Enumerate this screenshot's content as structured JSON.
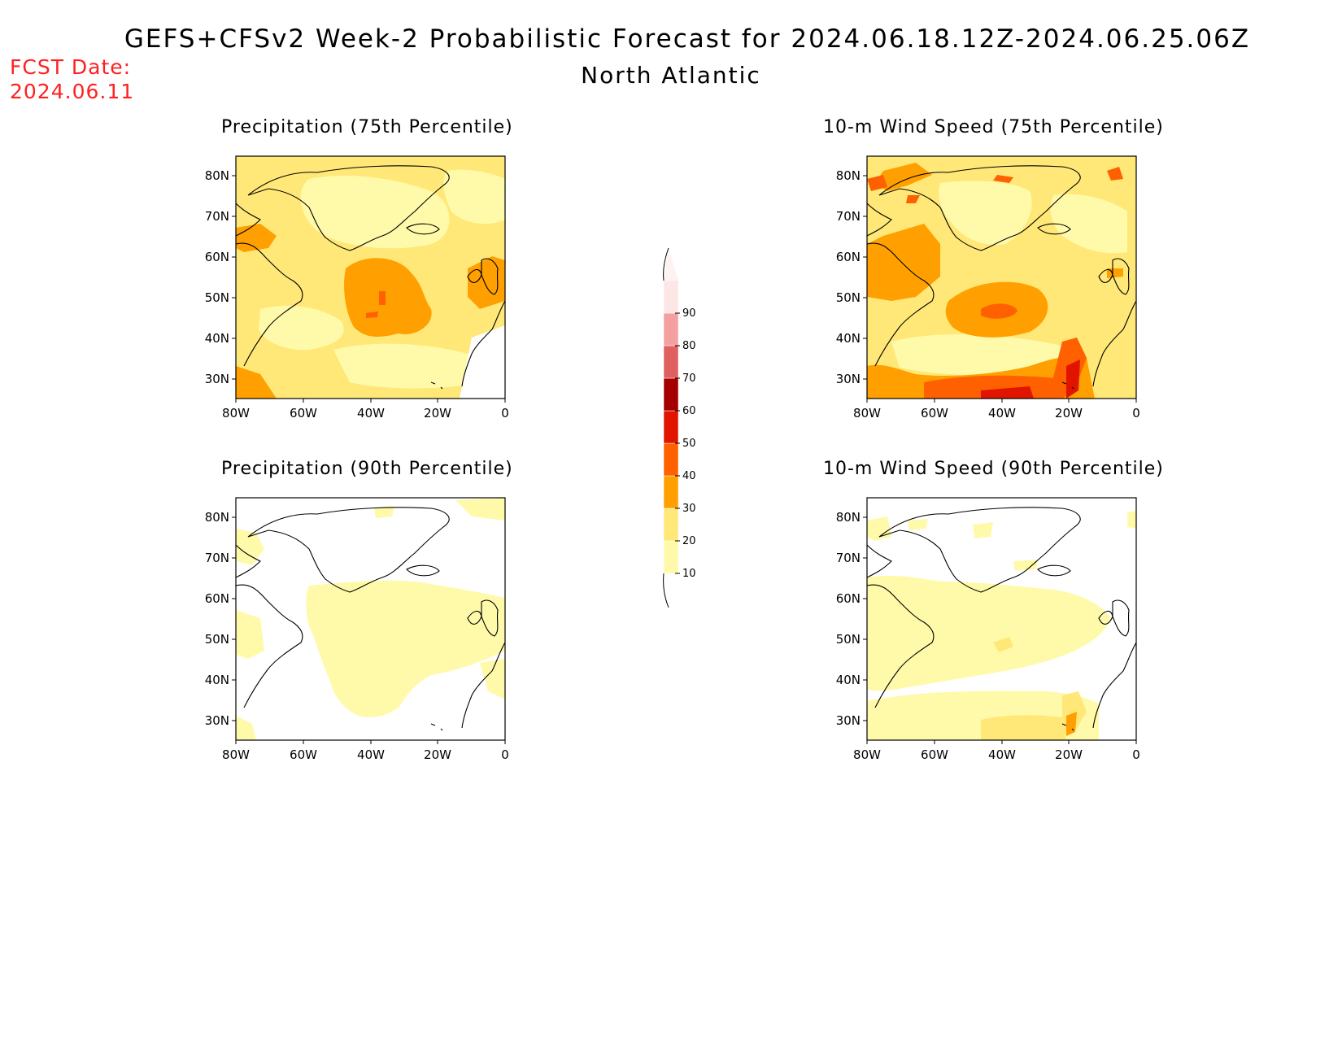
{
  "header": {
    "title": "GEFS+CFSv2 Week-2 Probabilistic Forecast for 2024.06.18.12Z-2024.06.25.06Z",
    "subtitle": "North Atlantic",
    "fcst_label": "FCST Date:",
    "fcst_value": "2024.06.11"
  },
  "axes": {
    "lat_ticks": [
      "80N",
      "70N",
      "60N",
      "50N",
      "40N",
      "30N"
    ],
    "lon_ticks": [
      "80W",
      "60W",
      "40W",
      "20W",
      "0"
    ]
  },
  "colorbar": {
    "levels": [
      10,
      20,
      30,
      40,
      50,
      60,
      70,
      80,
      90
    ],
    "labels": [
      "10",
      "20",
      "30",
      "40",
      "50",
      "60",
      "70",
      "80",
      "90"
    ],
    "colors": [
      "#fffaaa",
      "#ffe878",
      "#ffa000",
      "#ff6000",
      "#e11400",
      "#a50000",
      "#e06060",
      "#f5a0a0",
      "#fde6e6"
    ]
  },
  "panels": [
    {
      "id": "precip-75",
      "title": "Precipitation (75th Percentile)"
    },
    {
      "id": "wind-75",
      "title": "10-m Wind Speed (75th Percentile)"
    },
    {
      "id": "precip-90",
      "title": "Precipitation (90th Percentile)"
    },
    {
      "id": "wind-90",
      "title": "10-m Wind Speed (90th Percentile)"
    }
  ]
}
